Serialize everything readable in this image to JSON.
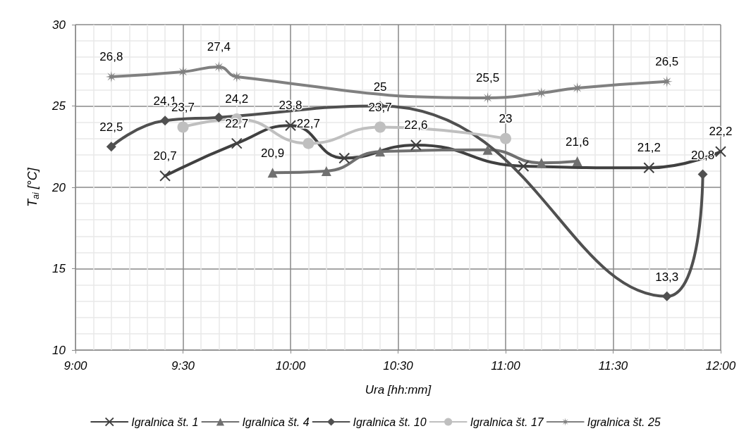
{
  "chart_data": {
    "type": "line",
    "xlabel": "Ura [hh:mm]",
    "ylabel": "T$_{ai}$ [°C]",
    "xlim": [
      9,
      12
    ],
    "xticks": [
      {
        "value": 9,
        "label": "9:00"
      },
      {
        "value": 9.5,
        "label": "9:30"
      },
      {
        "value": 10,
        "label": "10:00"
      },
      {
        "value": 10.5,
        "label": "10:30"
      },
      {
        "value": 11,
        "label": "11:00"
      },
      {
        "value": 11.5,
        "label": "11:30"
      },
      {
        "value": 12,
        "label": "12:00"
      }
    ],
    "ylim": [
      10,
      30
    ],
    "yticks": [
      10,
      15,
      20,
      25,
      30
    ],
    "grid": true,
    "legend": "bottom",
    "line_style": "solid",
    "series": [
      {
        "name": "Igralnica št. 1",
        "color": "#404040",
        "marker": "cross",
        "x": [
          9.4167,
          9.75,
          10,
          10.25,
          10.5833,
          11.0833,
          11.6667,
          12
        ],
        "values": [
          20.7,
          22.7,
          23.8,
          21.8,
          22.6,
          21.3,
          21.2,
          22.2
        ],
        "value_labels": [
          "20,7",
          "22,7",
          "23,8",
          null,
          "22,6",
          null,
          "21,2",
          "22,2"
        ]
      },
      {
        "name": "Igralnica št. 4",
        "color": "#707070",
        "marker": "triangle",
        "x": [
          9.9167,
          10.1667,
          10.4167,
          10.9167,
          11.1667,
          11.3333
        ],
        "values": [
          20.9,
          21.0,
          22.2,
          22.3,
          21.5,
          21.6
        ],
        "value_labels": [
          "20,9",
          null,
          null,
          null,
          null,
          "21,6"
        ]
      },
      {
        "name": "Igralnica št. 10",
        "color": "#505050",
        "marker": "diamond",
        "x": [
          9.1667,
          9.4167,
          9.6667,
          10.4167,
          11.75,
          11.9167
        ],
        "values": [
          22.5,
          24.1,
          24.3,
          25,
          13.3,
          20.8
        ],
        "value_labels": [
          "22,5",
          "24,1",
          null,
          "25",
          "13,3",
          "20,8"
        ]
      },
      {
        "name": "Igralnica št. 17",
        "color": "#bfbfbf",
        "marker": "circle",
        "x": [
          9.5,
          9.75,
          10.0833,
          10.4167,
          11
        ],
        "values": [
          23.7,
          24.2,
          22.7,
          23.7,
          23
        ],
        "value_labels": [
          "23,7",
          "24,2",
          "22,7",
          "23,7",
          "23"
        ]
      },
      {
        "name": "Igralnica št. 25",
        "color": "#808080",
        "marker": "star",
        "x": [
          9.1667,
          9.5,
          9.6667,
          9.75,
          10.9167,
          11.1667,
          11.3333,
          11.75
        ],
        "values": [
          26.8,
          27.1,
          27.4,
          26.8,
          25.5,
          25.8,
          26.1,
          26.5
        ],
        "value_labels": [
          "26,8",
          null,
          "27,4",
          null,
          "25,5",
          null,
          null,
          "26,5"
        ]
      }
    ]
  }
}
